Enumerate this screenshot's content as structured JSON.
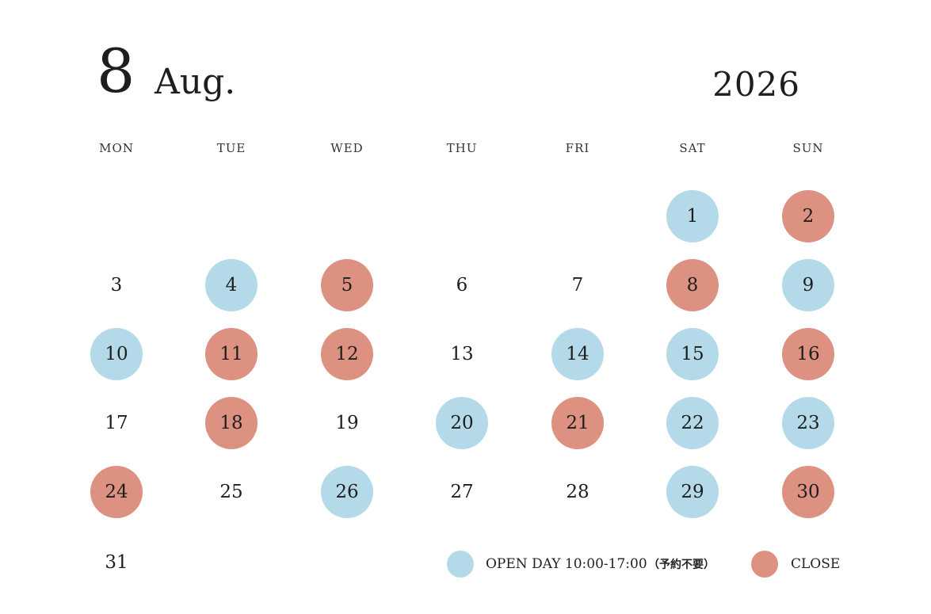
{
  "header": {
    "month_number": "8",
    "month_name": "Aug.",
    "year": "2026"
  },
  "colors": {
    "open": "#b4dae9",
    "close": "#dd9181"
  },
  "weekdays": [
    "MON",
    "TUE",
    "WED",
    "THU",
    "FRI",
    "SAT",
    "SUN"
  ],
  "days": [
    {
      "day": "1",
      "status": "open"
    },
    {
      "day": "2",
      "status": "close"
    },
    {
      "day": "3",
      "status": "none"
    },
    {
      "day": "4",
      "status": "open"
    },
    {
      "day": "5",
      "status": "close"
    },
    {
      "day": "6",
      "status": "none"
    },
    {
      "day": "7",
      "status": "none"
    },
    {
      "day": "8",
      "status": "close"
    },
    {
      "day": "9",
      "status": "open"
    },
    {
      "day": "10",
      "status": "open"
    },
    {
      "day": "11",
      "status": "close"
    },
    {
      "day": "12",
      "status": "close"
    },
    {
      "day": "13",
      "status": "none"
    },
    {
      "day": "14",
      "status": "open"
    },
    {
      "day": "15",
      "status": "open"
    },
    {
      "day": "16",
      "status": "close"
    },
    {
      "day": "17",
      "status": "none"
    },
    {
      "day": "18",
      "status": "close"
    },
    {
      "day": "19",
      "status": "none"
    },
    {
      "day": "20",
      "status": "open"
    },
    {
      "day": "21",
      "status": "close"
    },
    {
      "day": "22",
      "status": "open"
    },
    {
      "day": "23",
      "status": "open"
    },
    {
      "day": "24",
      "status": "close"
    },
    {
      "day": "25",
      "status": "none"
    },
    {
      "day": "26",
      "status": "open"
    },
    {
      "day": "27",
      "status": "none"
    },
    {
      "day": "28",
      "status": "none"
    },
    {
      "day": "29",
      "status": "open"
    },
    {
      "day": "30",
      "status": "close"
    },
    {
      "day": "31",
      "status": "none"
    }
  ],
  "legend": {
    "open_label": "OPEN DAY 10:00-17:00",
    "open_note": "（予約不要）",
    "close_label": "CLOSE"
  }
}
